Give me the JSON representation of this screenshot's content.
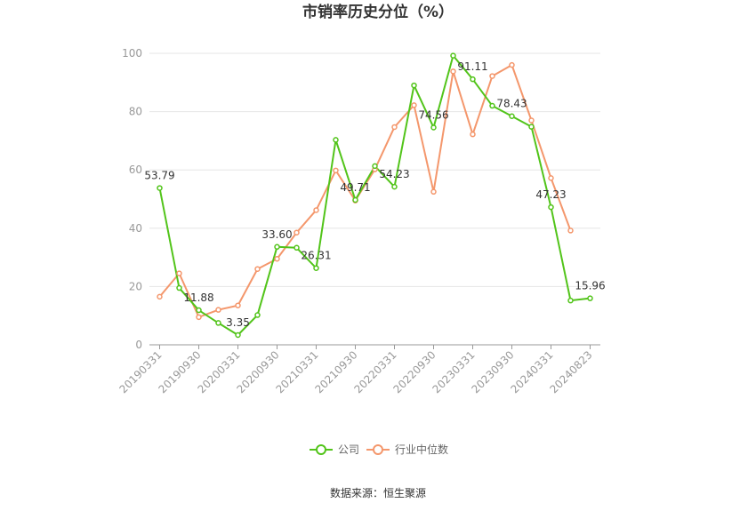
{
  "chart_data": {
    "type": "line",
    "title": "市销率历史分位（%）",
    "xlabel": "",
    "ylabel": "",
    "ylim": [
      0,
      100
    ],
    "yticks": [
      0,
      20,
      40,
      60,
      80,
      100
    ],
    "x": [
      "20190331",
      "20190630",
      "20190930",
      "20191231",
      "20200331",
      "20200630",
      "20200930",
      "20201231",
      "20210331",
      "20210630",
      "20210930",
      "20211231",
      "20220331",
      "20220630",
      "20220930",
      "20221231",
      "20230331",
      "20230630",
      "20230930",
      "20231231",
      "20240331",
      "20240630",
      "20240823"
    ],
    "xtick_labels": [
      "20190331",
      "20190930",
      "20200331",
      "20200930",
      "20210331",
      "20210930",
      "20220331",
      "20220930",
      "20230331",
      "20230930",
      "20240331",
      "20240823"
    ],
    "grid": true,
    "legend_position": "bottom",
    "series": [
      {
        "name": "公司",
        "color": "#52c41a",
        "values": [
          53.79,
          19.5,
          11.88,
          7.5,
          3.35,
          10.2,
          33.6,
          33.3,
          26.31,
          70.3,
          49.71,
          61.3,
          54.23,
          89.0,
          74.56,
          99.2,
          91.11,
          82.0,
          78.43,
          74.8,
          47.23,
          15.2,
          15.96
        ],
        "labels": {
          "0": "53.79",
          "2": "11.88",
          "4": "3.35",
          "6": "33.60",
          "8": "26.31",
          "10": "49.71",
          "12": "54.23",
          "14": "74.56",
          "16": "91.11",
          "18": "78.43",
          "20": "47.23",
          "22": "15.96"
        }
      },
      {
        "name": "行业中位数",
        "color": "#f4976c",
        "values": [
          16.5,
          24.5,
          9.5,
          12.0,
          13.5,
          26.0,
          29.5,
          38.5,
          46.2,
          59.8,
          49.5,
          60.2,
          74.7,
          82.2,
          52.5,
          93.8,
          72.2,
          92.2,
          96.0,
          77.0,
          57.2,
          39.2,
          null
        ]
      }
    ]
  },
  "legend": {
    "items": [
      {
        "label": "公司",
        "color": "#52c41a"
      },
      {
        "label": "行业中位数",
        "color": "#f4976c"
      }
    ]
  },
  "source": "数据来源：恒生聚源"
}
